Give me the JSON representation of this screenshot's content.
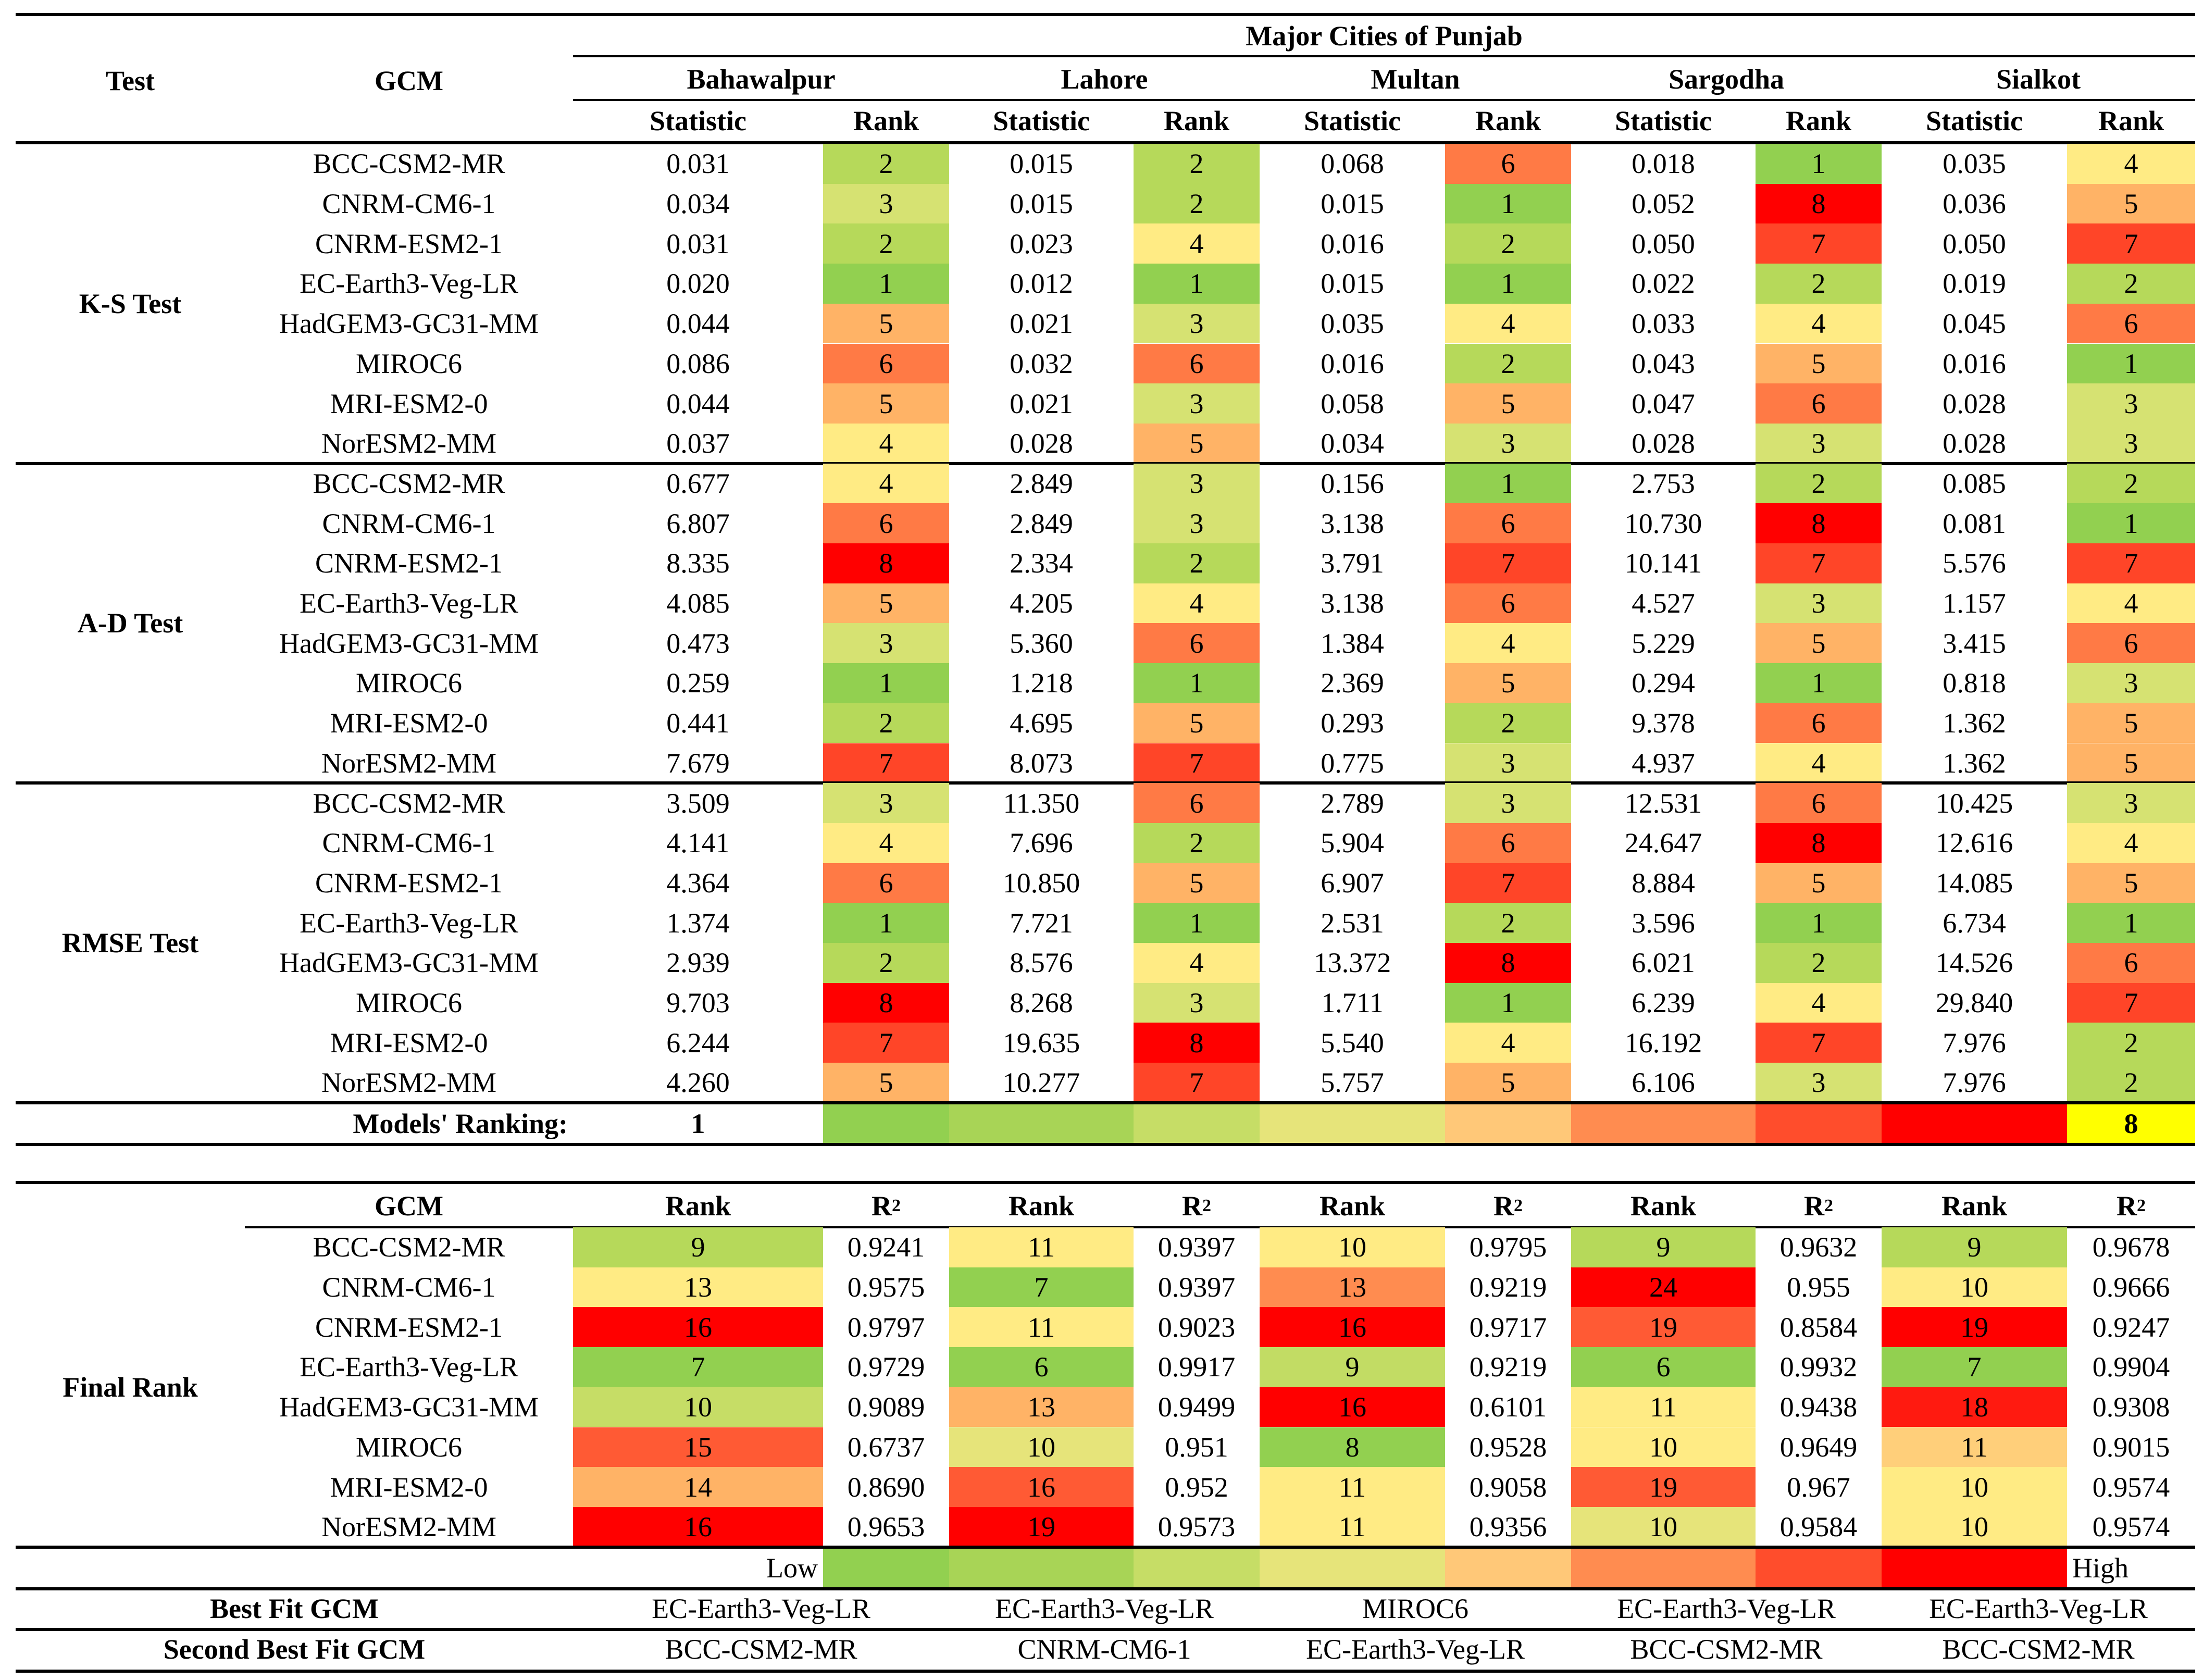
{
  "palette": {
    "1": "#92d050",
    "2": "#b6d95a",
    "3": "#d6e272",
    "4": "#ffeb84",
    "5": "#ffb366",
    "6": "#ff7a45",
    "7": "#ff4528",
    "8": "#ff0000",
    "highlight": "#ffff00"
  },
  "header": {
    "test": "Test",
    "gcm": "GCM",
    "super_title": "Major Cities of Punjab",
    "statistic": "Statistic",
    "rank": "Rank",
    "cities": [
      "Bahawalpur",
      "Lahore",
      "Multan",
      "Sargodha",
      "Sialkot"
    ]
  },
  "models": [
    "BCC-CSM2-MR",
    "CNRM-CM6-1",
    "CNRM-ESM2-1",
    "EC-Earth3-Veg-LR",
    "HadGEM3-GC31-MM",
    "MIROC6",
    "MRI-ESM2-0",
    "NorESM2-MM"
  ],
  "tests": [
    {
      "name": "K-S Test",
      "rows": [
        [
          [
            "0.031",
            2
          ],
          [
            "0.015",
            2
          ],
          [
            "0.068",
            6
          ],
          [
            "0.018",
            1
          ],
          [
            "0.035",
            4
          ]
        ],
        [
          [
            "0.034",
            3
          ],
          [
            "0.015",
            2
          ],
          [
            "0.015",
            1
          ],
          [
            "0.052",
            8
          ],
          [
            "0.036",
            5
          ]
        ],
        [
          [
            "0.031",
            2
          ],
          [
            "0.023",
            4
          ],
          [
            "0.016",
            2
          ],
          [
            "0.050",
            7
          ],
          [
            "0.050",
            7
          ]
        ],
        [
          [
            "0.020",
            1
          ],
          [
            "0.012",
            1
          ],
          [
            "0.015",
            1
          ],
          [
            "0.022",
            2
          ],
          [
            "0.019",
            2
          ]
        ],
        [
          [
            "0.044",
            5
          ],
          [
            "0.021",
            3
          ],
          [
            "0.035",
            4
          ],
          [
            "0.033",
            4
          ],
          [
            "0.045",
            6
          ]
        ],
        [
          [
            "0.086",
            6
          ],
          [
            "0.032",
            6
          ],
          [
            "0.016",
            2
          ],
          [
            "0.043",
            5
          ],
          [
            "0.016",
            1
          ]
        ],
        [
          [
            "0.044",
            5
          ],
          [
            "0.021",
            3
          ],
          [
            "0.058",
            5
          ],
          [
            "0.047",
            6
          ],
          [
            "0.028",
            3
          ]
        ],
        [
          [
            "0.037",
            4
          ],
          [
            "0.028",
            5
          ],
          [
            "0.034",
            3
          ],
          [
            "0.028",
            3
          ],
          [
            "0.028",
            3
          ]
        ]
      ]
    },
    {
      "name": "A-D Test",
      "rows": [
        [
          [
            "0.677",
            4
          ],
          [
            "2.849",
            3
          ],
          [
            "0.156",
            1
          ],
          [
            "2.753",
            2
          ],
          [
            "0.085",
            2
          ]
        ],
        [
          [
            "6.807",
            6
          ],
          [
            "2.849",
            3
          ],
          [
            "3.138",
            6
          ],
          [
            "10.730",
            8
          ],
          [
            "0.081",
            1
          ]
        ],
        [
          [
            "8.335",
            8
          ],
          [
            "2.334",
            2
          ],
          [
            "3.791",
            7
          ],
          [
            "10.141",
            7
          ],
          [
            "5.576",
            7
          ]
        ],
        [
          [
            "4.085",
            5
          ],
          [
            "4.205",
            4
          ],
          [
            "3.138",
            6
          ],
          [
            "4.527",
            3
          ],
          [
            "1.157",
            4
          ]
        ],
        [
          [
            "0.473",
            3
          ],
          [
            "5.360",
            6
          ],
          [
            "1.384",
            4
          ],
          [
            "5.229",
            5
          ],
          [
            "3.415",
            6
          ]
        ],
        [
          [
            "0.259",
            1
          ],
          [
            "1.218",
            1
          ],
          [
            "2.369",
            5
          ],
          [
            "0.294",
            1
          ],
          [
            "0.818",
            3
          ]
        ],
        [
          [
            "0.441",
            2
          ],
          [
            "4.695",
            5
          ],
          [
            "0.293",
            2
          ],
          [
            "9.378",
            6
          ],
          [
            "1.362",
            5
          ]
        ],
        [
          [
            "7.679",
            7
          ],
          [
            "8.073",
            7
          ],
          [
            "0.775",
            3
          ],
          [
            "4.937",
            4
          ],
          [
            "1.362",
            5
          ]
        ]
      ]
    },
    {
      "name": "RMSE Test",
      "rows": [
        [
          [
            "3.509",
            3
          ],
          [
            "11.350",
            6
          ],
          [
            "2.789",
            3
          ],
          [
            "12.531",
            6
          ],
          [
            "10.425",
            3
          ]
        ],
        [
          [
            "4.141",
            4
          ],
          [
            "7.696",
            2
          ],
          [
            "5.904",
            6
          ],
          [
            "24.647",
            8
          ],
          [
            "12.616",
            4
          ]
        ],
        [
          [
            "4.364",
            6
          ],
          [
            "10.850",
            5
          ],
          [
            "6.907",
            7
          ],
          [
            "8.884",
            5
          ],
          [
            "14.085",
            5
          ]
        ],
        [
          [
            "1.374",
            1
          ],
          [
            "7.721",
            1
          ],
          [
            "2.531",
            2
          ],
          [
            "3.596",
            1
          ],
          [
            "6.734",
            1
          ]
        ],
        [
          [
            "2.939",
            2
          ],
          [
            "8.576",
            4
          ],
          [
            "13.372",
            8
          ],
          [
            "6.021",
            2
          ],
          [
            "14.526",
            6
          ]
        ],
        [
          [
            "9.703",
            8
          ],
          [
            "8.268",
            3
          ],
          [
            "1.711",
            1
          ],
          [
            "6.239",
            4
          ],
          [
            "29.840",
            7
          ]
        ],
        [
          [
            "6.244",
            7
          ],
          [
            "19.635",
            8
          ],
          [
            "5.540",
            4
          ],
          [
            "16.192",
            7
          ],
          [
            "7.976",
            2
          ]
        ],
        [
          [
            "4.260",
            5
          ],
          [
            "10.277",
            7
          ],
          [
            "5.757",
            5
          ],
          [
            "6.106",
            3
          ],
          [
            "7.976",
            2
          ]
        ]
      ]
    }
  ],
  "models_ranking": {
    "label": "Models' Ranking:",
    "start": "1",
    "end": "8",
    "colors": [
      "#92d050",
      "#a8d456",
      "#c6dd66",
      "#e6e47a",
      "#ffc878",
      "#ff8c50",
      "#ff4d2c",
      "#ff0000"
    ]
  },
  "final": {
    "label": "Final Rank",
    "gcm": "GCM",
    "rank": "Rank",
    "r2": "R",
    "r2_sup": "2",
    "rows": [
      [
        [
          "9",
          "0.9241"
        ],
        [
          "11",
          "0.9397"
        ],
        [
          "10",
          "0.9795"
        ],
        [
          "9",
          "0.9632"
        ],
        [
          "9",
          "0.9678"
        ]
      ],
      [
        [
          "13",
          "0.9575"
        ],
        [
          "7",
          "0.9397"
        ],
        [
          "13",
          "0.9219"
        ],
        [
          "24",
          "0.955"
        ],
        [
          "10",
          "0.9666"
        ]
      ],
      [
        [
          "16",
          "0.9797"
        ],
        [
          "11",
          "0.9023"
        ],
        [
          "16",
          "0.9717"
        ],
        [
          "19",
          "0.8584"
        ],
        [
          "19",
          "0.9247"
        ]
      ],
      [
        [
          "7",
          "0.9729"
        ],
        [
          "6",
          "0.9917"
        ],
        [
          "9",
          "0.9219"
        ],
        [
          "6",
          "0.9932"
        ],
        [
          "7",
          "0.9904"
        ]
      ],
      [
        [
          "10",
          "0.9089"
        ],
        [
          "13",
          "0.9499"
        ],
        [
          "16",
          "0.6101"
        ],
        [
          "11",
          "0.9438"
        ],
        [
          "18",
          "0.9308"
        ]
      ],
      [
        [
          "15",
          "0.6737"
        ],
        [
          "10",
          "0.951"
        ],
        [
          "8",
          "0.9528"
        ],
        [
          "10",
          "0.9649"
        ],
        [
          "11",
          "0.9015"
        ]
      ],
      [
        [
          "14",
          "0.8690"
        ],
        [
          "16",
          "0.952"
        ],
        [
          "11",
          "0.9058"
        ],
        [
          "19",
          "0.967"
        ],
        [
          "10",
          "0.9574"
        ]
      ],
      [
        [
          "16",
          "0.9653"
        ],
        [
          "19",
          "0.9573"
        ],
        [
          "11",
          "0.9356"
        ],
        [
          "10",
          "0.9584"
        ],
        [
          "10",
          "0.9574"
        ]
      ]
    ],
    "colors": [
      [
        "#b6d95a",
        "#ffeb84",
        "#ffeb84",
        "#b6d95a",
        "#b6d95a"
      ],
      [
        "#ffeb84",
        "#92d050",
        "#ff8c50",
        "#ff0000",
        "#ffeb84"
      ],
      [
        "#ff0000",
        "#ffeb84",
        "#ff0000",
        "#ff5a34",
        "#ff0000"
      ],
      [
        "#92d050",
        "#92d050",
        "#c2dc64",
        "#92d050",
        "#92d050"
      ],
      [
        "#c6dd66",
        "#ffb366",
        "#ff0000",
        "#ffeb84",
        "#ff1a10"
      ],
      [
        "#ff5a34",
        "#e6e47a",
        "#92d050",
        "#ffeb84",
        "#ffcf7a"
      ],
      [
        "#ffb366",
        "#ff5a34",
        "#ffeb84",
        "#ff5a34",
        "#ffeb84"
      ],
      [
        "#ff0000",
        "#ff0000",
        "#ffeb84",
        "#e6e47a",
        "#ffeb84"
      ]
    ]
  },
  "scale": {
    "low": "Low",
    "high": "High",
    "colors": [
      "#92d050",
      "#a8d456",
      "#c6dd66",
      "#e6e47a",
      "#ffc878",
      "#ff8c50",
      "#ff4d2c",
      "#ff0000"
    ]
  },
  "best_fit": {
    "label": "Best Fit GCM",
    "values": [
      "EC-Earth3-Veg-LR",
      "EC-Earth3-Veg-LR",
      "MIROC6",
      "EC-Earth3-Veg-LR",
      "EC-Earth3-Veg-LR"
    ]
  },
  "second_best_fit": {
    "label": "Second Best Fit GCM",
    "values": [
      "BCC-CSM2-MR",
      "CNRM-CM6-1",
      "EC-Earth3-Veg-LR",
      "BCC-CSM2-MR",
      "BCC-CSM2-MR"
    ]
  }
}
